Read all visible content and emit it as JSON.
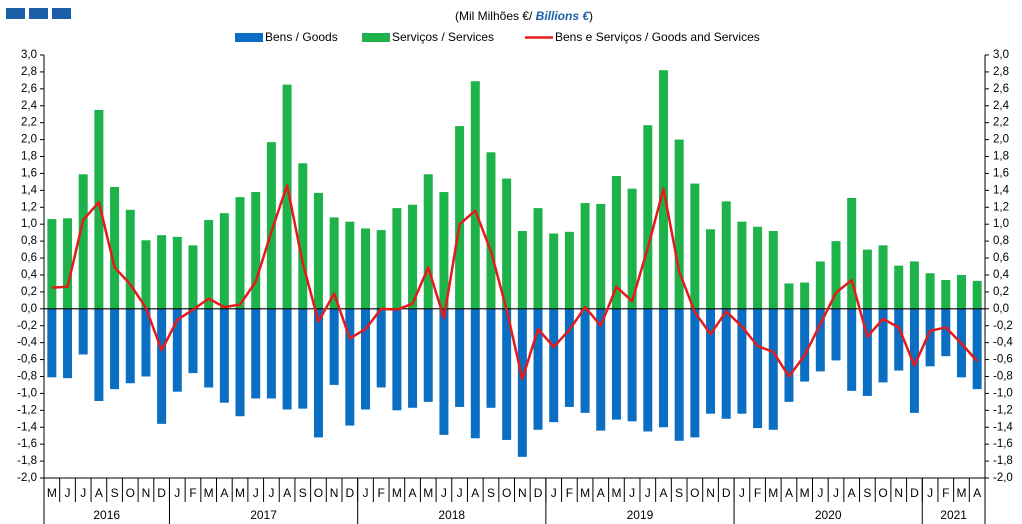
{
  "chart_data": {
    "type": "bar-line",
    "title": [
      "(Mil Milhões  €/ ",
      "Billions €",
      ")"
    ],
    "categories": [
      "M",
      "J",
      "J",
      "A",
      "S",
      "O",
      "N",
      "D",
      "J",
      "F",
      "M",
      "A",
      "M",
      "J",
      "J",
      "A",
      "S",
      "O",
      "N",
      "D",
      "J",
      "F",
      "M",
      "A",
      "M",
      "J",
      "J",
      "A",
      "S",
      "O",
      "N",
      "D",
      "J",
      "F",
      "M",
      "A",
      "M",
      "J",
      "J",
      "A",
      "S",
      "O",
      "N",
      "D",
      "J",
      "F",
      "M",
      "A",
      "M",
      "J",
      "J",
      "A",
      "S",
      "O",
      "N",
      "D",
      "J",
      "F",
      "M",
      "A"
    ],
    "years": [
      "2016",
      "2017",
      "2018",
      "2019",
      "2020",
      "2021"
    ],
    "series": [
      {
        "name": "Bens / Goods",
        "type": "bar",
        "color": "#0a6fc2",
        "values": [
          -0.81,
          -0.82,
          -0.54,
          -1.09,
          -0.95,
          -0.88,
          -0.8,
          -1.36,
          -0.98,
          -0.76,
          -0.93,
          -1.11,
          -1.27,
          -1.06,
          -1.06,
          -1.19,
          -1.18,
          -1.52,
          -0.9,
          -1.38,
          -1.19,
          -0.93,
          -1.2,
          -1.17,
          -1.1,
          -1.49,
          -1.16,
          -1.53,
          -1.17,
          -1.55,
          -1.75,
          -1.43,
          -1.34,
          -1.16,
          -1.23,
          -1.44,
          -1.31,
          -1.33,
          -1.45,
          -1.4,
          -1.56,
          -1.52,
          -1.24,
          -1.3,
          -1.24,
          -1.41,
          -1.43,
          -1.1,
          -0.86,
          -0.74,
          -0.61,
          -0.97,
          -1.03,
          -0.87,
          -0.73,
          -1.23,
          -0.68,
          -0.56,
          -0.81,
          -0.95
        ]
      },
      {
        "name": "Serviços / Services",
        "type": "bar",
        "color": "#1db34a",
        "values": [
          1.06,
          1.07,
          1.59,
          2.35,
          1.44,
          1.17,
          0.81,
          0.87,
          0.85,
          0.75,
          1.05,
          1.13,
          1.32,
          1.38,
          1.97,
          2.65,
          1.72,
          1.37,
          1.08,
          1.03,
          0.95,
          0.93,
          1.19,
          1.23,
          1.59,
          1.38,
          2.16,
          2.69,
          1.85,
          1.54,
          0.92,
          1.19,
          0.89,
          0.91,
          1.25,
          1.24,
          1.57,
          1.42,
          2.17,
          2.82,
          2.0,
          1.48,
          0.94,
          1.27,
          1.03,
          0.97,
          0.92,
          0.3,
          0.31,
          0.56,
          0.8,
          1.31,
          0.7,
          0.75,
          0.51,
          0.56,
          0.42,
          0.34,
          0.4,
          0.33
        ]
      },
      {
        "name": "Bens e Serviços  / Goods and Services",
        "type": "line",
        "color": "#e41b1b",
        "values": [
          0.25,
          0.26,
          1.05,
          1.26,
          0.49,
          0.29,
          0.01,
          -0.49,
          -0.13,
          -0.01,
          0.12,
          0.02,
          0.05,
          0.32,
          0.91,
          1.46,
          0.54,
          -0.15,
          0.18,
          -0.35,
          -0.24,
          0.0,
          -0.01,
          0.06,
          0.49,
          -0.11,
          1.0,
          1.16,
          0.68,
          -0.01,
          -0.83,
          -0.24,
          -0.45,
          -0.25,
          0.02,
          -0.2,
          0.26,
          0.09,
          0.72,
          1.42,
          0.44,
          -0.04,
          -0.3,
          -0.03,
          -0.21,
          -0.44,
          -0.51,
          -0.8,
          -0.55,
          -0.18,
          0.19,
          0.34,
          -0.33,
          -0.12,
          -0.22,
          -0.67,
          -0.26,
          -0.22,
          -0.41,
          -0.62
        ]
      }
    ],
    "ylim": [
      -2.0,
      3.0
    ],
    "yticks": [
      {
        "value": -2.0,
        "label": "-2,0"
      },
      {
        "value": -1.8,
        "label": "-1,8"
      },
      {
        "value": -1.6,
        "label": "-1,6"
      },
      {
        "value": -1.4,
        "label": "-1,4"
      },
      {
        "value": -1.2,
        "label": "-1,2"
      },
      {
        "value": -1.0,
        "label": "-1,0"
      },
      {
        "value": -0.8,
        "label": "-0,8"
      },
      {
        "value": -0.6,
        "label": "-0,6"
      },
      {
        "value": -0.4,
        "label": "-0,4"
      },
      {
        "value": -0.2,
        "label": "-0,2"
      },
      {
        "value": 0.0,
        "label": "0,0"
      },
      {
        "value": 0.2,
        "label": "0,2"
      },
      {
        "value": 0.4,
        "label": "0,4"
      },
      {
        "value": 0.6,
        "label": "0,6"
      },
      {
        "value": 0.8,
        "label": "0,8"
      },
      {
        "value": 1.0,
        "label": "1,0"
      },
      {
        "value": 1.2,
        "label": "1,2"
      },
      {
        "value": 1.4,
        "label": "1,4"
      },
      {
        "value": 1.6,
        "label": "1,6"
      },
      {
        "value": 1.8,
        "label": "1,8"
      },
      {
        "value": 2.0,
        "label": "2,0"
      },
      {
        "value": 2.2,
        "label": "2,2"
      },
      {
        "value": 2.4,
        "label": "2,4"
      },
      {
        "value": 2.6,
        "label": "2,6"
      },
      {
        "value": 2.8,
        "label": "2,8"
      },
      {
        "value": 3.0,
        "label": "3,0"
      }
    ]
  }
}
